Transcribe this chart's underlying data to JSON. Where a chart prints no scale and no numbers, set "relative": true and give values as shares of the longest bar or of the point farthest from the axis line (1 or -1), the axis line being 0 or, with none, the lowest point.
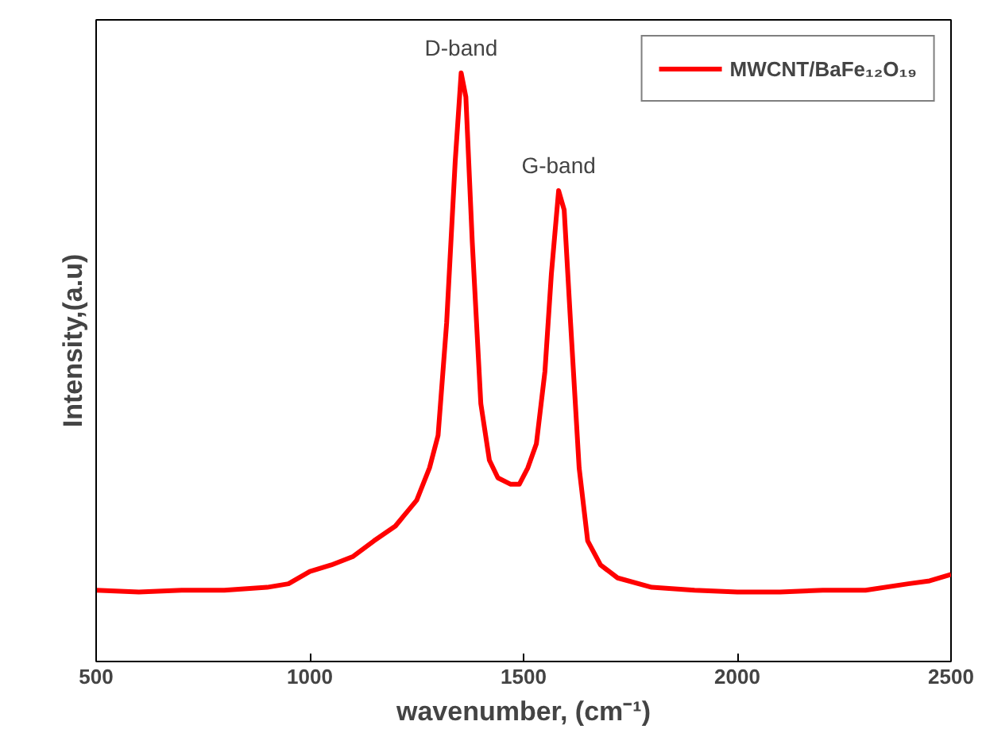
{
  "chart_data": {
    "type": "line",
    "relative": true,
    "xlabel": "wavenumber, (cm⁻¹)",
    "ylabel": "Intensity,(a.u)",
    "xlim": [
      500,
      2500
    ],
    "xticks": [
      500,
      1000,
      1500,
      2000,
      2500
    ],
    "grid": false,
    "legend": "top right",
    "tick_labels": "x",
    "x": [
      500,
      600,
      700,
      800,
      900,
      950,
      1000,
      1050,
      1100,
      1150,
      1200,
      1250,
      1280,
      1300,
      1320,
      1340,
      1354,
      1365,
      1380,
      1400,
      1420,
      1440,
      1470,
      1490,
      1510,
      1530,
      1550,
      1565,
      1582,
      1595,
      1610,
      1630,
      1650,
      1680,
      1720,
      1800,
      1900,
      2000,
      2100,
      2200,
      2300,
      2400,
      2450,
      2500
    ],
    "series": [
      {
        "name": "MWCNT/BaFe₁₂O₁₉",
        "color": "#ff0000",
        "values": [
          0.121,
          0.118,
          0.121,
          0.121,
          0.126,
          0.132,
          0.153,
          0.164,
          0.178,
          0.205,
          0.23,
          0.274,
          0.329,
          0.384,
          0.575,
          0.849,
          1,
          0.959,
          0.712,
          0.438,
          0.342,
          0.312,
          0.301,
          0.301,
          0.329,
          0.37,
          0.493,
          0.658,
          0.8,
          0.767,
          0.575,
          0.329,
          0.205,
          0.164,
          0.142,
          0.126,
          0.121,
          0.118,
          0.118,
          0.121,
          0.121,
          0.132,
          0.137,
          0.148
        ]
      }
    ],
    "annotations": [
      "D-band",
      "G-band"
    ]
  }
}
